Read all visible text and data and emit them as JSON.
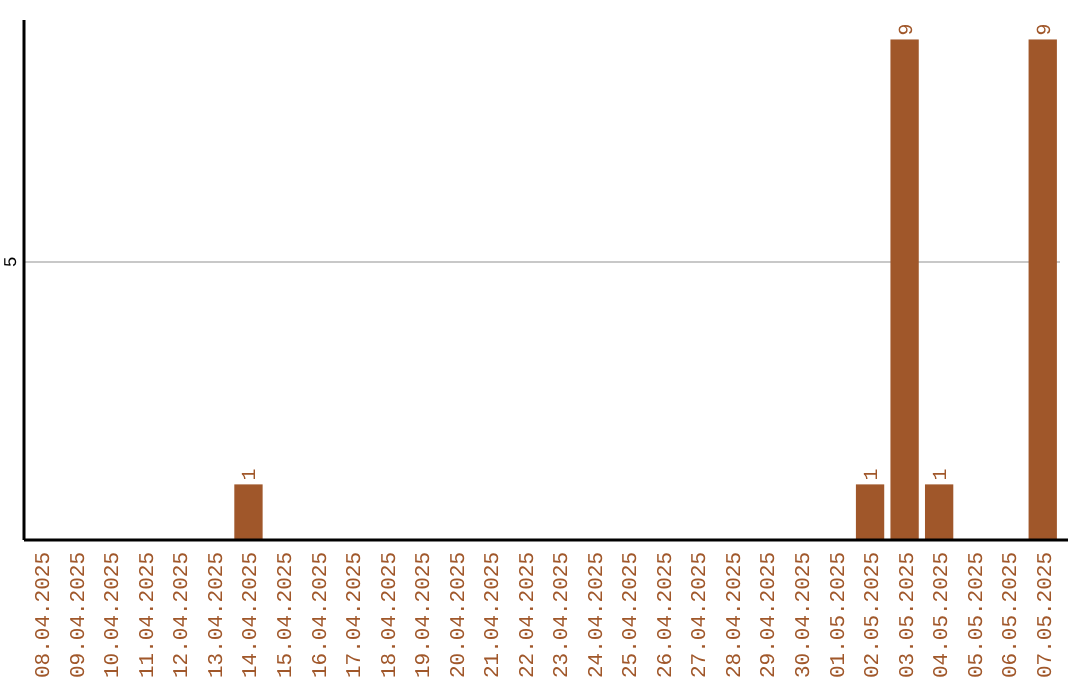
{
  "chart_data": {
    "type": "bar",
    "categories": [
      "08.04.2025",
      "09.04.2025",
      "10.04.2025",
      "11.04.2025",
      "12.04.2025",
      "13.04.2025",
      "14.04.2025",
      "15.04.2025",
      "16.04.2025",
      "17.04.2025",
      "18.04.2025",
      "19.04.2025",
      "20.04.2025",
      "21.04.2025",
      "22.04.2025",
      "23.04.2025",
      "24.04.2025",
      "25.04.2025",
      "26.04.2025",
      "27.04.2025",
      "28.04.2025",
      "29.04.2025",
      "30.04.2025",
      "01.05.2025",
      "02.05.2025",
      "03.05.2025",
      "04.05.2025",
      "05.05.2025",
      "06.05.2025",
      "07.05.2025"
    ],
    "values": [
      0,
      0,
      0,
      0,
      0,
      0,
      1,
      0,
      0,
      0,
      0,
      0,
      0,
      0,
      0,
      0,
      0,
      0,
      0,
      0,
      0,
      0,
      0,
      0,
      1,
      9,
      1,
      0,
      0,
      9
    ],
    "value_labels": [
      null,
      null,
      null,
      null,
      null,
      null,
      "1",
      null,
      null,
      null,
      null,
      null,
      null,
      null,
      null,
      null,
      null,
      null,
      null,
      null,
      null,
      null,
      null,
      null,
      "1",
      "9",
      "1",
      null,
      null,
      "9"
    ],
    "color": "#a0572a",
    "ylim": [
      0,
      9.35
    ],
    "yticks": [
      5
    ],
    "grid": "y"
  }
}
